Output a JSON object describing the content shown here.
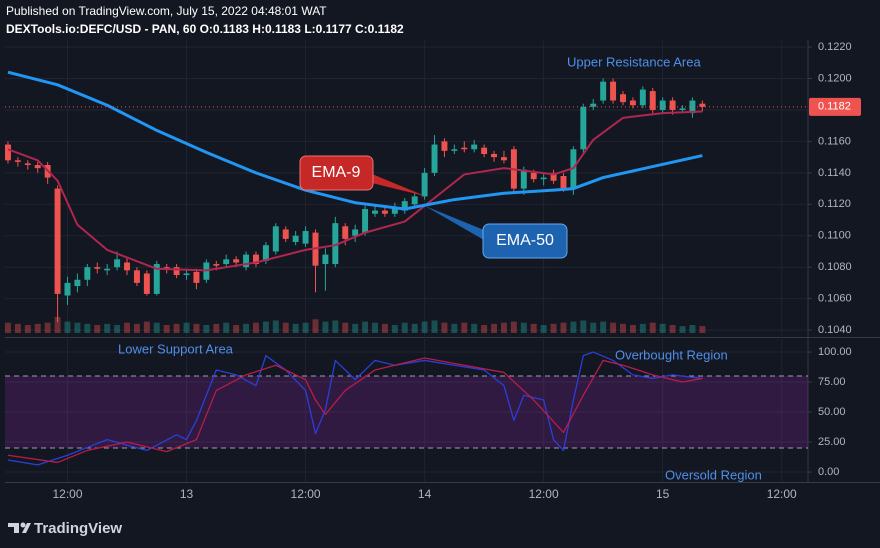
{
  "header": {
    "published": "Published on TradingView.com, July 15, 2022 04:48:01 WAT",
    "symbol": "DEXTools.io:DEFC/USD - PAN, 60 O:0.1183 H:0.1183 L:0.1177 C:0.1182"
  },
  "footer": {
    "brand": "TradingView"
  },
  "chart_data": [
    {
      "type": "candlestick",
      "open": [
        0.1158,
        0.1148,
        0.1146,
        0.1145,
        0.1145,
        0.113,
        0.1062,
        0.1068,
        0.1072,
        0.108,
        0.1078,
        0.108,
        0.1083,
        0.1078,
        0.1076,
        0.1063,
        0.108,
        0.108,
        0.1075,
        0.1077,
        0.1072,
        0.1082,
        0.1082,
        0.1085,
        0.108,
        0.1088,
        0.1084,
        0.109,
        0.1104,
        0.1096,
        0.1095,
        0.1102,
        0.1082,
        0.1082,
        0.1106,
        0.11,
        0.1102,
        0.1114,
        0.1116,
        0.1114,
        0.1116,
        0.112,
        0.1125,
        0.114,
        0.116,
        0.1154,
        0.1156,
        0.1155,
        0.1156,
        0.1152,
        0.115,
        0.1155,
        0.113,
        0.114,
        0.1136,
        0.114,
        0.1138,
        0.113,
        0.1155,
        0.1182,
        0.1186,
        0.1198,
        0.119,
        0.1186,
        0.1183,
        0.1192,
        0.118,
        0.1186,
        0.118,
        0.1178,
        0.1184
      ],
      "high": [
        0.116,
        0.115,
        0.1148,
        0.1147,
        0.1147,
        0.1132,
        0.1074,
        0.1076,
        0.1082,
        0.1083,
        0.1082,
        0.109,
        0.1086,
        0.108,
        0.1078,
        0.1084,
        0.1082,
        0.1082,
        0.1079,
        0.1079,
        0.1085,
        0.1084,
        0.1088,
        0.1087,
        0.109,
        0.109,
        0.1096,
        0.1108,
        0.1106,
        0.1103,
        0.1106,
        0.1104,
        0.1092,
        0.1112,
        0.1108,
        0.1107,
        0.1119,
        0.112,
        0.1118,
        0.1121,
        0.1124,
        0.1128,
        0.1143,
        0.1164,
        0.1162,
        0.1158,
        0.116,
        0.1161,
        0.1158,
        0.1154,
        0.1154,
        0.1157,
        0.1144,
        0.1142,
        0.114,
        0.1142,
        0.114,
        0.1157,
        0.1184,
        0.1187,
        0.12,
        0.12,
        0.1192,
        0.1188,
        0.1195,
        0.1194,
        0.1188,
        0.1188,
        0.1183,
        0.1188,
        0.1186
      ],
      "low": [
        0.1146,
        0.1144,
        0.1142,
        0.114,
        0.1133,
        0.1045,
        0.1056,
        0.1064,
        0.1068,
        0.1076,
        0.1075,
        0.1078,
        0.1075,
        0.1068,
        0.1062,
        0.1062,
        0.1076,
        0.1073,
        0.1072,
        0.1066,
        0.107,
        0.1078,
        0.108,
        0.108,
        0.1078,
        0.108,
        0.1082,
        0.1088,
        0.1096,
        0.1094,
        0.1093,
        0.1064,
        0.1065,
        0.108,
        0.1094,
        0.1096,
        0.11,
        0.1112,
        0.1112,
        0.1112,
        0.1114,
        0.1118,
        0.1123,
        0.1138,
        0.115,
        0.1152,
        0.1153,
        0.1153,
        0.115,
        0.1147,
        0.1146,
        0.1128,
        0.1126,
        0.1134,
        0.1132,
        0.1133,
        0.1128,
        0.1126,
        0.1152,
        0.118,
        0.1184,
        0.1184,
        0.1183,
        0.1181,
        0.1181,
        0.1178,
        0.1178,
        0.1177,
        0.1178,
        0.1175,
        0.1179
      ],
      "close": [
        0.1148,
        0.1147,
        0.1145,
        0.1143,
        0.1137,
        0.1063,
        0.107,
        0.1072,
        0.108,
        0.1079,
        0.1079,
        0.1085,
        0.1078,
        0.107,
        0.1063,
        0.1082,
        0.1079,
        0.1075,
        0.1076,
        0.107,
        0.1083,
        0.1081,
        0.1085,
        0.1083,
        0.1088,
        0.1082,
        0.1094,
        0.1106,
        0.1098,
        0.11,
        0.1103,
        0.1081,
        0.1088,
        0.1108,
        0.1098,
        0.1104,
        0.1117,
        0.1116,
        0.1114,
        0.1118,
        0.1122,
        0.1125,
        0.114,
        0.1158,
        0.1154,
        0.1155,
        0.1155,
        0.1158,
        0.1152,
        0.115,
        0.1148,
        0.113,
        0.1142,
        0.1136,
        0.1137,
        0.1135,
        0.113,
        0.1155,
        0.1182,
        0.1184,
        0.1198,
        0.1186,
        0.1185,
        0.1183,
        0.1193,
        0.118,
        0.1186,
        0.118,
        0.1181,
        0.1186,
        0.1182
      ],
      "volume": [
        9,
        8,
        7,
        8,
        9,
        14,
        10,
        9,
        8,
        7,
        8,
        7,
        9,
        8,
        10,
        9,
        7,
        8,
        9,
        8,
        7,
        8,
        9,
        7,
        8,
        9,
        10,
        11,
        9,
        8,
        9,
        12,
        10,
        11,
        9,
        8,
        10,
        9,
        8,
        7,
        9,
        8,
        10,
        11,
        9,
        8,
        9,
        8,
        7,
        8,
        9,
        10,
        9,
        8,
        7,
        8,
        9,
        10,
        11,
        9,
        10,
        9,
        8,
        7,
        8,
        9,
        8,
        7,
        6,
        7,
        6
      ],
      "up_color": "#26a69a",
      "down_color": "#ef5350",
      "series": [
        {
          "name": "EMA-9",
          "color": "#b0264f",
          "x": [
            0,
            3,
            5,
            7,
            10,
            15,
            20,
            25,
            30,
            33,
            36,
            40,
            43,
            46,
            50,
            55,
            57,
            59,
            62,
            66,
            70
          ],
          "values": [
            0.1155,
            0.1148,
            0.1135,
            0.1107,
            0.1091,
            0.1079,
            0.1078,
            0.1083,
            0.1091,
            0.1094,
            0.1102,
            0.1109,
            0.1124,
            0.1139,
            0.1143,
            0.1139,
            0.1143,
            0.1161,
            0.1175,
            0.1178,
            0.1179
          ]
        },
        {
          "name": "EMA-50",
          "color": "#2196f3",
          "x": [
            0,
            5,
            10,
            15,
            20,
            25,
            30,
            35,
            40,
            45,
            50,
            55,
            57,
            60,
            65,
            70
          ],
          "values": [
            0.1204,
            0.1196,
            0.1183,
            0.1167,
            0.1153,
            0.114,
            0.1129,
            0.1121,
            0.1117,
            0.1123,
            0.1127,
            0.1129,
            0.113,
            0.1137,
            0.1144,
            0.1151
          ]
        }
      ],
      "price_line": {
        "value": 0.1182,
        "label": "0.1182"
      },
      "annotations": [
        "Upper Resistance Area"
      ],
      "xlim": [
        -0.3,
        80.65
      ],
      "xticks": [
        {
          "value": 6,
          "label": "12:00"
        },
        {
          "value": 18,
          "label": "13"
        },
        {
          "value": 30,
          "label": "12:00"
        },
        {
          "value": 42,
          "label": "14"
        },
        {
          "value": 54,
          "label": "12:00"
        },
        {
          "value": 66,
          "label": "15"
        },
        {
          "value": 78,
          "label": "12:00"
        }
      ],
      "ylim": [
        0.10356,
        0.12245
      ],
      "yticks": [
        {
          "value": 0.122,
          "label": "0.1220"
        },
        {
          "value": 0.12,
          "label": "0.1200"
        },
        {
          "value": 0.118,
          "label": "0.1180"
        },
        {
          "value": 0.116,
          "label": "0.1160"
        },
        {
          "value": 0.114,
          "label": "0.1140"
        },
        {
          "value": 0.112,
          "label": "0.1120"
        },
        {
          "value": 0.11,
          "label": "0.1100"
        },
        {
          "value": 0.108,
          "label": "0.1080"
        },
        {
          "value": 0.106,
          "label": "0.1060"
        },
        {
          "value": 0.104,
          "label": "0.1040"
        }
      ],
      "grid": true
    },
    {
      "type": "line",
      "series": [
        {
          "color": "#2b3fd8",
          "x": [
            0,
            3,
            6,
            10,
            14,
            17,
            18,
            19,
            21,
            23,
            25,
            26,
            28,
            30,
            31,
            32,
            33,
            35,
            37,
            39,
            42,
            45,
            48,
            50,
            51,
            52,
            54,
            55,
            56,
            57,
            58,
            59,
            61,
            63,
            65,
            67,
            70
          ],
          "values": [
            10,
            6,
            14,
            27,
            18,
            31,
            27,
            43,
            85,
            81,
            72,
            97,
            85,
            68,
            32,
            52,
            93,
            77,
            93,
            89,
            93,
            89,
            85,
            72,
            43,
            64,
            60,
            27,
            18,
            60,
            97,
            100,
            93,
            81,
            78,
            81,
            78
          ]
        },
        {
          "color": "#b71c4b",
          "x": [
            0,
            5,
            8,
            12,
            16,
            19,
            21,
            24,
            27,
            30,
            31,
            32,
            34,
            37,
            42,
            46,
            50,
            53,
            56,
            58,
            60,
            62,
            65,
            68,
            70
          ],
          "values": [
            14,
            8,
            18,
            25,
            17,
            27,
            68,
            81,
            89,
            77,
            60,
            48,
            68,
            85,
            95,
            89,
            83,
            60,
            33,
            64,
            93,
            89,
            81,
            75,
            78
          ]
        }
      ],
      "bands": [
        20,
        80
      ],
      "annotations": [
        "Lower Support Area",
        "Overbought Region",
        "Oversold Region"
      ],
      "ylim": [
        -8.3,
        111.7
      ],
      "yticks": [
        {
          "value": 100,
          "label": "100.00"
        },
        {
          "value": 75,
          "label": "75.00"
        },
        {
          "value": 50,
          "label": "50.00"
        },
        {
          "value": 25,
          "label": "25.00"
        },
        {
          "value": 0,
          "label": "0.00"
        }
      ],
      "grid": true
    }
  ]
}
